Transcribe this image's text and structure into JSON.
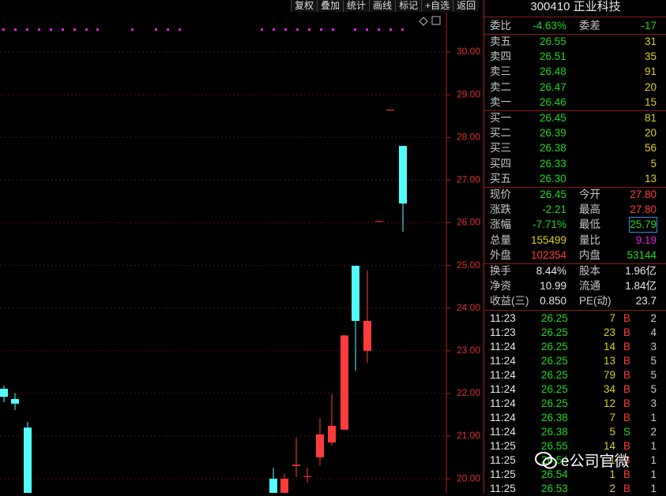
{
  "toolbar": [
    "复权",
    "叠加",
    "统计",
    "画线",
    "标记",
    "+自选",
    "返回"
  ],
  "chart": {
    "ylim": [
      19.67,
      31.22
    ],
    "yticks": [
      {
        "value": 30,
        "label": "30.00"
      },
      {
        "value": 29,
        "label": "29.00"
      },
      {
        "value": 28,
        "label": "28.00"
      },
      {
        "value": 27,
        "label": "27.00"
      },
      {
        "value": 26,
        "label": "26.00"
      },
      {
        "value": 25,
        "label": "25.00"
      },
      {
        "value": 24,
        "label": "24.00"
      },
      {
        "value": 23,
        "label": "23.00"
      },
      {
        "value": 22,
        "label": "22.00"
      },
      {
        "value": 21,
        "label": "21.00"
      },
      {
        "value": 20,
        "label": "20.00"
      }
    ],
    "candles": [
      {
        "open": 22.11,
        "high": 22.18,
        "low": 21.79,
        "close": 21.92
      },
      {
        "open": 21.87,
        "high": 22.01,
        "low": 21.61,
        "close": 21.76
      },
      {
        "open": 21.2,
        "high": 21.33,
        "low": 19.5,
        "close": 19.6
      },
      {
        "open": 20.0,
        "high": 20.26,
        "low": 19.5,
        "close": 19.6
      },
      {
        "open": 19.6,
        "high": 20.12,
        "low": 19.5,
        "close": 20.0
      },
      {
        "open": 20.3,
        "high": 20.96,
        "low": 20.04,
        "close": 20.33
      },
      {
        "open": 20.06,
        "high": 20.26,
        "low": 19.91,
        "close": 20.06
      },
      {
        "open": 20.5,
        "high": 21.42,
        "low": 20.31,
        "close": 21.04
      },
      {
        "open": 20.85,
        "high": 21.98,
        "low": 20.78,
        "close": 21.24
      },
      {
        "open": 21.15,
        "high": 23.36,
        "low": 21.15,
        "close": 23.36
      },
      {
        "open": 24.99,
        "high": 24.99,
        "low": 22.53,
        "close": 23.7
      },
      {
        "open": 23.0,
        "high": 24.88,
        "low": 22.72,
        "close": 23.7
      },
      {
        "open": 26.04,
        "high": 26.04,
        "low": 26.04,
        "close": 26.04
      },
      {
        "open": 28.65,
        "high": 28.65,
        "low": 28.65,
        "close": 28.65
      },
      {
        "open": 27.8,
        "high": 27.8,
        "low": 25.79,
        "close": 26.45
      }
    ]
  },
  "panel": {
    "title": "300410 正业科技",
    "ratio": [
      "委比",
      "-4.63%",
      "委差",
      "-17"
    ],
    "sell": [
      [
        "卖五",
        "26.55",
        "31"
      ],
      [
        "卖四",
        "26.51",
        "35"
      ],
      [
        "卖三",
        "26.48",
        "91"
      ],
      [
        "卖二",
        "26.47",
        "20"
      ],
      [
        "卖一",
        "26.46",
        "15"
      ]
    ],
    "buy": [
      [
        "买一",
        "26.45",
        "81"
      ],
      [
        "买二",
        "26.39",
        "20"
      ],
      [
        "买三",
        "26.38",
        "56"
      ],
      [
        "买四",
        "26.33",
        "5"
      ],
      [
        "买五",
        "26.30",
        "13"
      ]
    ],
    "stats": [
      [
        "现价",
        "26.45",
        "今开",
        "27.80"
      ],
      [
        "涨跌",
        "-2.21",
        "最高",
        "27.80"
      ],
      [
        "涨幅",
        "-7.71%",
        "最低",
        "25.79"
      ],
      [
        "总量",
        "155499",
        "量比",
        "9.19"
      ],
      [
        "外盘",
        "102354",
        "内盘",
        "53144"
      ]
    ],
    "info": [
      [
        "换手",
        "8.44%",
        "股本",
        "1.96亿"
      ],
      [
        "净资",
        "10.99",
        "流通",
        "1.84亿"
      ],
      [
        "收益(三)",
        "0.850",
        "PE(动)",
        "23.7"
      ]
    ],
    "trades": [
      [
        "11:23",
        "26.25",
        "7",
        "B",
        "2"
      ],
      [
        "11:23",
        "26.25",
        "23",
        "B",
        "4"
      ],
      [
        "11:24",
        "26.25",
        "14",
        "B",
        "3"
      ],
      [
        "11:24",
        "26.25",
        "13",
        "B",
        "5"
      ],
      [
        "11:24",
        "26.25",
        "79",
        "B",
        "5"
      ],
      [
        "11:24",
        "26.25",
        "34",
        "B",
        "5"
      ],
      [
        "11:24",
        "26.25",
        "12",
        "B",
        "3"
      ],
      [
        "11:24",
        "26.38",
        "7",
        "B",
        "1"
      ],
      [
        "11:24",
        "26.38",
        "5",
        "S",
        "2"
      ],
      [
        "11:25",
        "26.55",
        "14",
        "B",
        "1"
      ],
      [
        "11:25",
        "26.54",
        "1",
        "B",
        "1"
      ],
      [
        "11:25",
        "26.54",
        "1",
        "B",
        "1"
      ],
      [
        "11:25",
        "26.53",
        "2",
        "B",
        "1"
      ]
    ]
  },
  "watermark": "e公司官微"
}
